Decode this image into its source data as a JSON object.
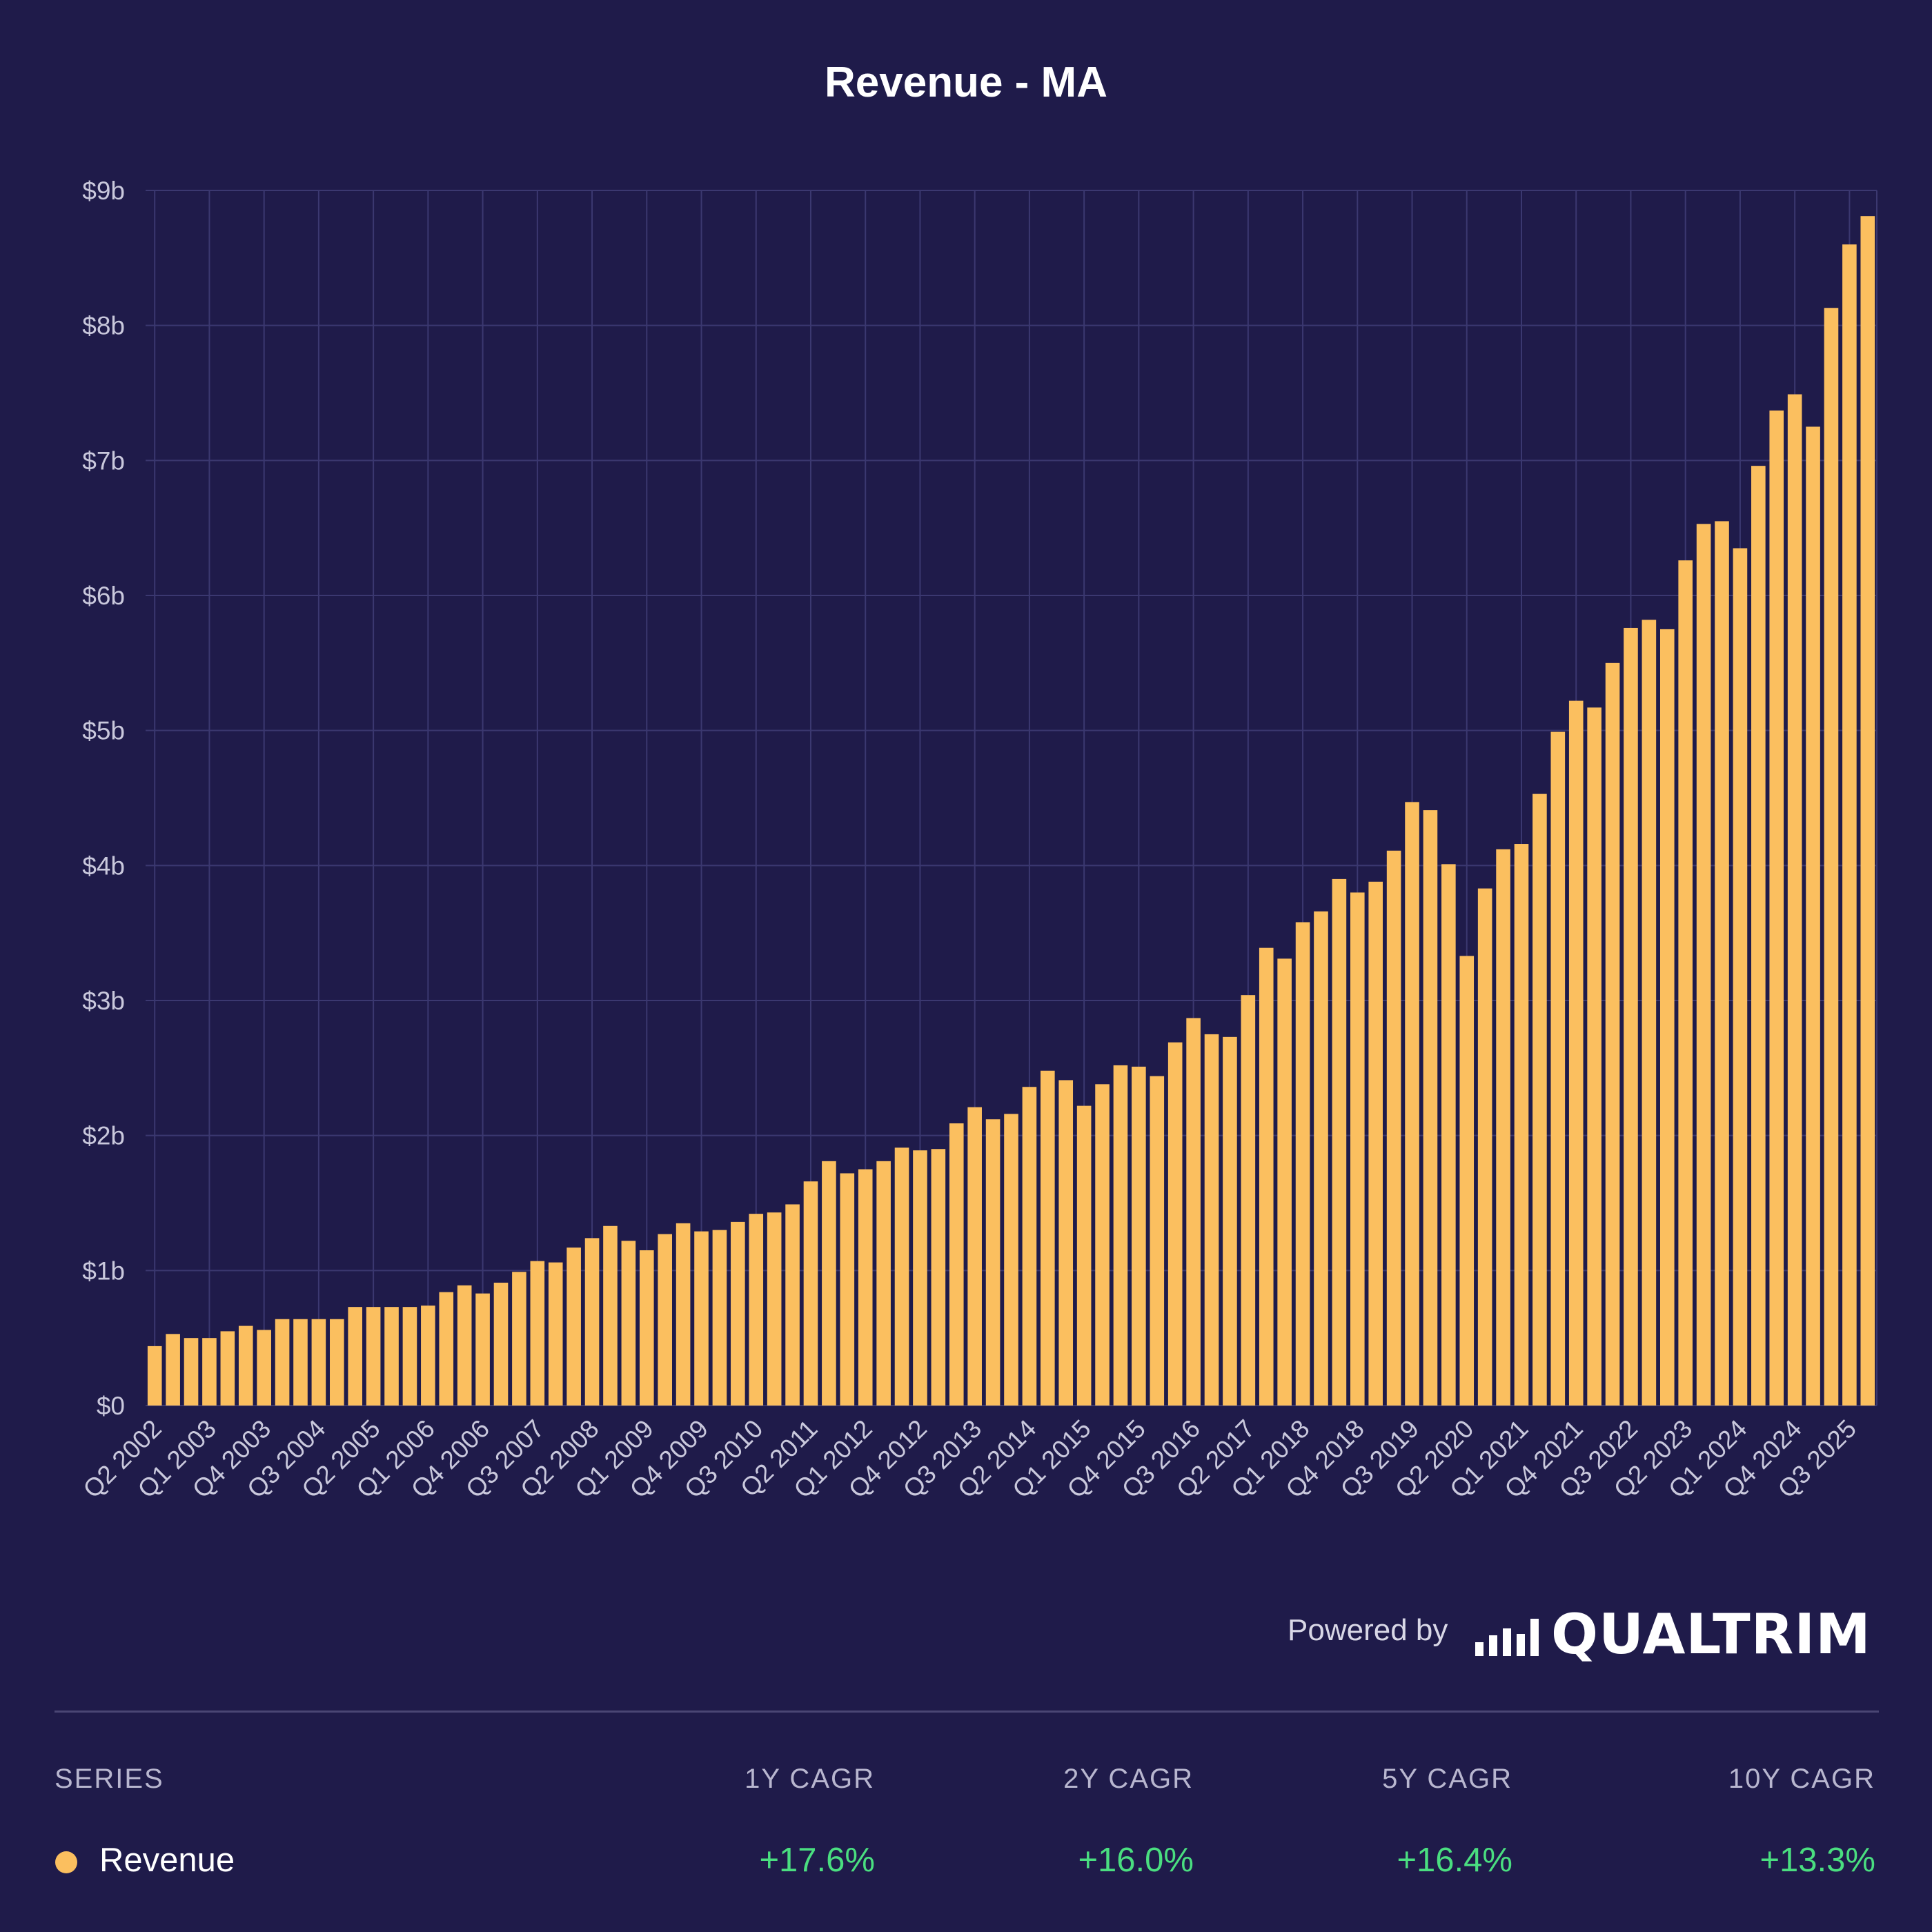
{
  "colors": {
    "background": "#1f1b4a",
    "bar": "#fbbf5f",
    "grid": "#3b3870",
    "positive": "#4ade80"
  },
  "chart_data": {
    "type": "bar",
    "title": "Revenue - MA",
    "xlabel": "",
    "ylabel": "",
    "ylim": [
      0,
      9
    ],
    "y_ticks": [
      "$0",
      "$1b",
      "$2b",
      "$3b",
      "$4b",
      "$5b",
      "$6b",
      "$7b",
      "$8b",
      "$9b"
    ],
    "y_unit": "billions USD",
    "grid": true,
    "x_tick_labels": [
      "Q2 2002",
      "Q1 2003",
      "Q4 2003",
      "Q3 2004",
      "Q2 2005",
      "Q1 2006",
      "Q4 2006",
      "Q3 2007",
      "Q2 2008",
      "Q1 2009",
      "Q4 2009",
      "Q3 2010",
      "Q2 2011",
      "Q1 2012",
      "Q4 2012",
      "Q3 2013",
      "Q2 2014",
      "Q1 2015",
      "Q4 2015",
      "Q3 2016",
      "Q2 2017",
      "Q1 2018",
      "Q4 2018",
      "Q3 2019",
      "Q2 2020",
      "Q1 2021",
      "Q4 2021",
      "Q3 2022",
      "Q2 2023",
      "Q1 2024",
      "Q4 2024",
      "Q3 2025"
    ],
    "categories": [
      "Q2 2002",
      "Q3 2002",
      "Q4 2002",
      "Q1 2003",
      "Q2 2003",
      "Q3 2003",
      "Q4 2003",
      "Q1 2004",
      "Q2 2004",
      "Q3 2004",
      "Q4 2004",
      "Q1 2005",
      "Q2 2005",
      "Q3 2005",
      "Q4 2005",
      "Q1 2006",
      "Q2 2006",
      "Q3 2006",
      "Q4 2006",
      "Q1 2007",
      "Q2 2007",
      "Q3 2007",
      "Q4 2007",
      "Q1 2008",
      "Q2 2008",
      "Q3 2008",
      "Q4 2008",
      "Q1 2009",
      "Q2 2009",
      "Q3 2009",
      "Q4 2009",
      "Q1 2010",
      "Q2 2010",
      "Q3 2010",
      "Q4 2010",
      "Q1 2011",
      "Q2 2011",
      "Q3 2011",
      "Q4 2011",
      "Q1 2012",
      "Q2 2012",
      "Q3 2012",
      "Q4 2012",
      "Q1 2013",
      "Q2 2013",
      "Q3 2013",
      "Q4 2013",
      "Q1 2014",
      "Q2 2014",
      "Q3 2014",
      "Q4 2014",
      "Q1 2015",
      "Q2 2015",
      "Q3 2015",
      "Q4 2015",
      "Q1 2016",
      "Q2 2016",
      "Q3 2016",
      "Q4 2016",
      "Q1 2017",
      "Q2 2017",
      "Q3 2017",
      "Q4 2017",
      "Q1 2018",
      "Q2 2018",
      "Q3 2018",
      "Q4 2018",
      "Q1 2019",
      "Q2 2019",
      "Q3 2019",
      "Q4 2019",
      "Q1 2020",
      "Q2 2020",
      "Q3 2020",
      "Q4 2020",
      "Q1 2021",
      "Q2 2021",
      "Q3 2021",
      "Q4 2021",
      "Q1 2022",
      "Q2 2022",
      "Q3 2022",
      "Q4 2022",
      "Q1 2023",
      "Q2 2023",
      "Q3 2023",
      "Q4 2023",
      "Q1 2024",
      "Q2 2024",
      "Q3 2024",
      "Q4 2024",
      "Q1 2025",
      "Q2 2025",
      "Q3 2025",
      "Q4 2025"
    ],
    "series": [
      {
        "name": "Revenue",
        "values": [
          0.44,
          0.53,
          0.5,
          0.5,
          0.55,
          0.59,
          0.56,
          0.64,
          0.64,
          0.64,
          0.64,
          0.73,
          0.73,
          0.73,
          0.73,
          0.74,
          0.84,
          0.89,
          0.83,
          0.91,
          0.99,
          1.07,
          1.06,
          1.17,
          1.24,
          1.33,
          1.22,
          1.15,
          1.27,
          1.35,
          1.29,
          1.3,
          1.36,
          1.42,
          1.43,
          1.49,
          1.66,
          1.81,
          1.72,
          1.75,
          1.81,
          1.91,
          1.89,
          1.9,
          2.09,
          2.21,
          2.12,
          2.16,
          2.36,
          2.48,
          2.41,
          2.22,
          2.38,
          2.52,
          2.51,
          2.44,
          2.69,
          2.87,
          2.75,
          2.73,
          3.04,
          3.39,
          3.31,
          3.58,
          3.66,
          3.9,
          3.8,
          3.88,
          4.11,
          4.47,
          4.41,
          4.01,
          3.33,
          3.83,
          4.12,
          4.16,
          4.53,
          4.99,
          5.22,
          5.17,
          5.5,
          5.76,
          5.82,
          5.75,
          6.26,
          6.53,
          6.55,
          6.35,
          6.96,
          7.37,
          7.49,
          7.25,
          8.13,
          8.6,
          8.81
        ]
      }
    ]
  },
  "branding": {
    "powered_by": "Powered by",
    "logo_text": "QUALTRIM"
  },
  "stats_table": {
    "headers": {
      "series": "SERIES",
      "cagr_1y": "1Y CAGR",
      "cagr_2y": "2Y CAGR",
      "cagr_5y": "5Y CAGR",
      "cagr_10y": "10Y CAGR"
    },
    "row": {
      "series_name": "Revenue",
      "cagr_1y": "+17.6%",
      "cagr_2y": "+16.0%",
      "cagr_5y": "+16.4%",
      "cagr_10y": "+13.3%"
    }
  }
}
